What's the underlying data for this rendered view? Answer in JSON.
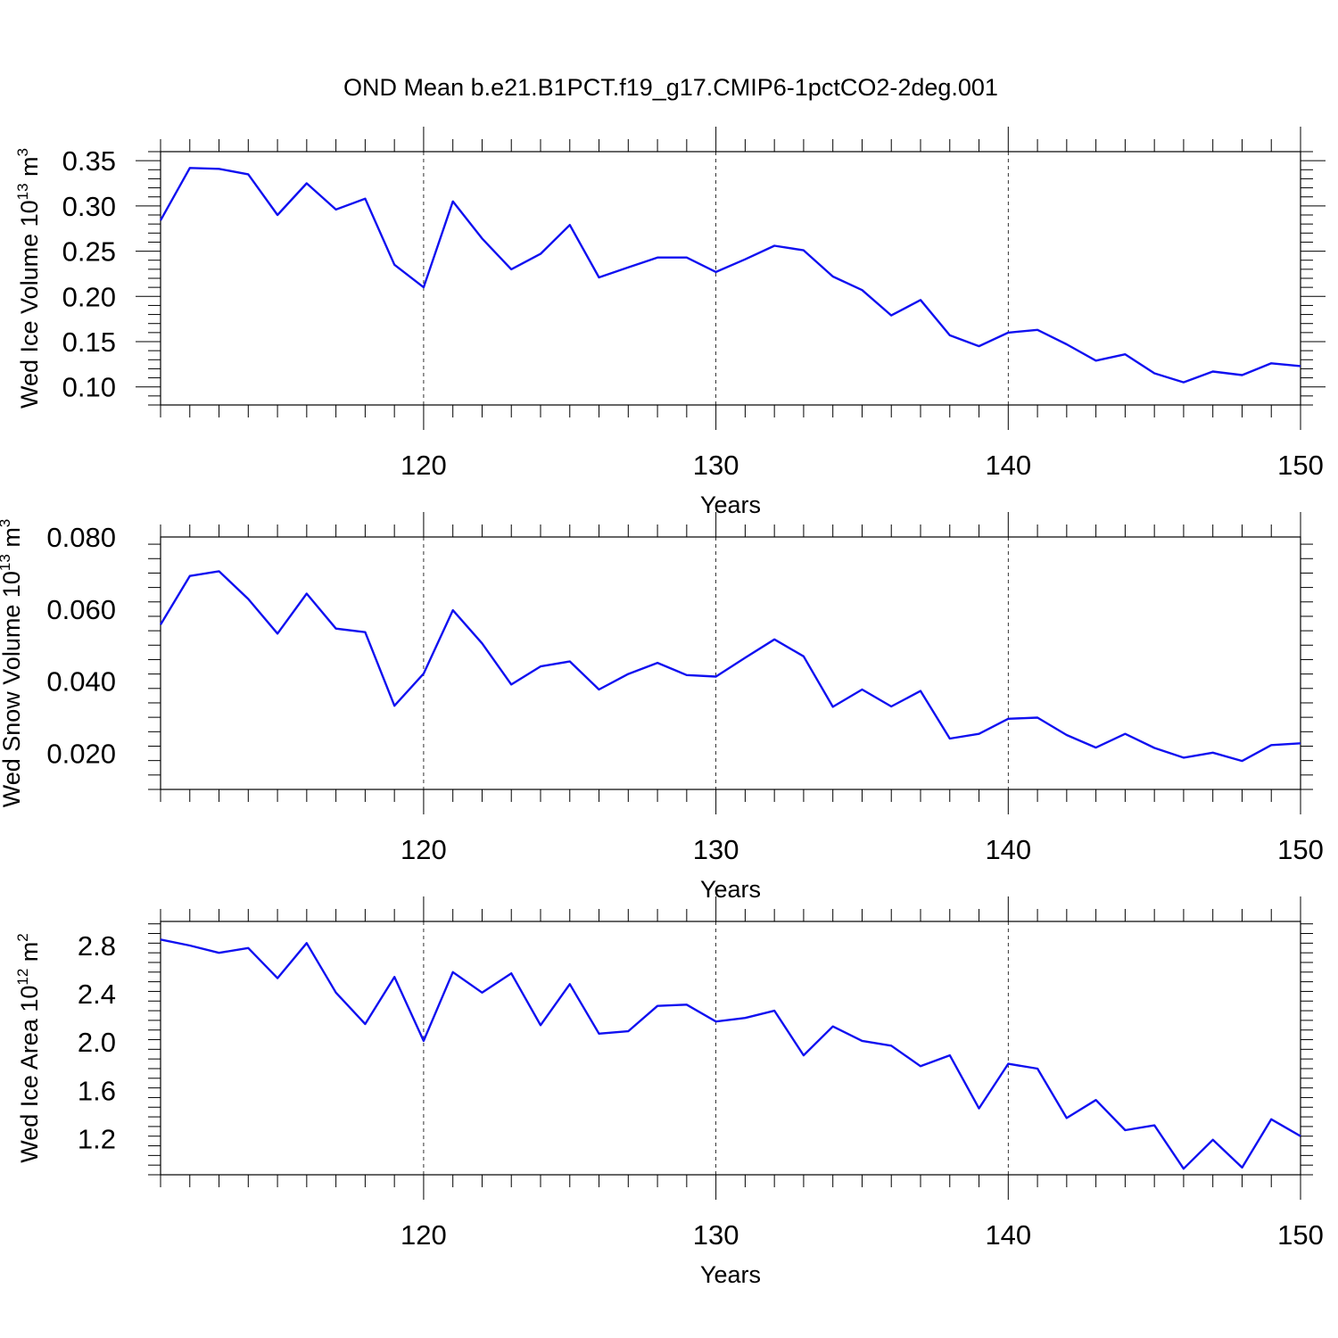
{
  "title": "OND Mean b.e21.B1PCT.f19_g17.CMIP6-1pctCO2-2deg.001",
  "chart_data": [
    {
      "type": "line",
      "ylabel": "Wed Ice Volume 10",
      "ylabel_exp": "13",
      "ylabel_unit": " m",
      "ylabel_unit_exp": "3",
      "xlabel": "Years",
      "xlim": [
        111,
        150
      ],
      "ylim": [
        0.08,
        0.36
      ],
      "yticks": [
        0.1,
        0.15,
        0.2,
        0.25,
        0.3,
        0.35
      ],
      "ytick_labels": [
        "0.10",
        "0.15",
        "0.20",
        "0.25",
        "0.30",
        "0.35"
      ],
      "xticks": [
        120,
        130,
        140,
        150
      ],
      "xtick_labels": [
        "120",
        "130",
        "140",
        "150"
      ],
      "grid": "dashed vertical at major x ticks",
      "color": "#1010f0",
      "x": [
        111,
        112,
        113,
        114,
        115,
        116,
        117,
        118,
        119,
        120,
        121,
        122,
        123,
        124,
        125,
        126,
        127,
        128,
        129,
        130,
        131,
        132,
        133,
        134,
        135,
        136,
        137,
        138,
        139,
        140,
        141,
        142,
        143,
        144,
        145,
        146,
        147,
        148,
        149,
        150
      ],
      "values": [
        0.284,
        0.342,
        0.341,
        0.335,
        0.29,
        0.325,
        0.296,
        0.308,
        0.235,
        0.21,
        0.305,
        0.264,
        0.23,
        0.247,
        0.279,
        0.221,
        0.232,
        0.243,
        0.243,
        0.227,
        0.241,
        0.256,
        0.251,
        0.222,
        0.207,
        0.179,
        0.196,
        0.157,
        0.145,
        0.16,
        0.163,
        0.147,
        0.129,
        0.136,
        0.115,
        0.105,
        0.117,
        0.113,
        0.126,
        0.123
      ]
    },
    {
      "type": "line",
      "ylabel": "Wed Snow Volume 10",
      "ylabel_exp": "13",
      "ylabel_unit": " m",
      "ylabel_unit_exp": "3",
      "xlabel": "Years",
      "xlim": [
        111,
        150
      ],
      "ylim": [
        0.01,
        0.08
      ],
      "yticks": [
        0.02,
        0.04,
        0.06,
        0.08
      ],
      "ytick_labels": [
        "0.020",
        "0.040",
        "0.060",
        "0.080"
      ],
      "xticks": [
        120,
        130,
        140,
        150
      ],
      "xtick_labels": [
        "120",
        "130",
        "140",
        "150"
      ],
      "grid": "dashed vertical at major x ticks",
      "color": "#1010f0",
      "x": [
        111,
        112,
        113,
        114,
        115,
        116,
        117,
        118,
        119,
        120,
        121,
        122,
        123,
        124,
        125,
        126,
        127,
        128,
        129,
        130,
        131,
        132,
        133,
        134,
        135,
        136,
        137,
        138,
        139,
        140,
        141,
        142,
        143,
        144,
        145,
        146,
        147,
        148,
        149,
        150
      ],
      "values": [
        0.0557,
        0.0692,
        0.0705,
        0.0628,
        0.0532,
        0.0643,
        0.0546,
        0.0536,
        0.0332,
        0.0421,
        0.0597,
        0.0505,
        0.0391,
        0.0441,
        0.0455,
        0.0377,
        0.042,
        0.0451,
        0.0417,
        0.0413,
        0.0465,
        0.0516,
        0.0469,
        0.0329,
        0.0377,
        0.033,
        0.0373,
        0.0241,
        0.0254,
        0.0296,
        0.0299,
        0.0251,
        0.0216,
        0.0254,
        0.0215,
        0.0188,
        0.0202,
        0.0179,
        0.0223,
        0.0228
      ]
    },
    {
      "type": "line",
      "ylabel": "Wed Ice Area 10",
      "ylabel_exp": "12",
      "ylabel_unit": " m",
      "ylabel_unit_exp": "2",
      "xlabel": "Years",
      "xlim": [
        111,
        150
      ],
      "ylim": [
        0.9,
        3.0
      ],
      "yticks": [
        1.2,
        1.6,
        2.0,
        2.4,
        2.8
      ],
      "ytick_labels": [
        "1.2",
        "1.6",
        "2.0",
        "2.4",
        "2.8"
      ],
      "xticks": [
        120,
        130,
        140,
        150
      ],
      "xtick_labels": [
        "120",
        "130",
        "140",
        "150"
      ],
      "grid": "dashed vertical at major x ticks",
      "color": "#1010f0",
      "x": [
        111,
        112,
        113,
        114,
        115,
        116,
        117,
        118,
        119,
        120,
        121,
        122,
        123,
        124,
        125,
        126,
        127,
        128,
        129,
        130,
        131,
        132,
        133,
        134,
        135,
        136,
        137,
        138,
        139,
        140,
        141,
        142,
        143,
        144,
        145,
        146,
        147,
        148,
        149,
        150
      ],
      "values": [
        2.85,
        2.8,
        2.74,
        2.78,
        2.53,
        2.82,
        2.41,
        2.15,
        2.54,
        2.01,
        2.58,
        2.41,
        2.57,
        2.14,
        2.48,
        2.07,
        2.09,
        2.3,
        2.31,
        2.17,
        2.2,
        2.26,
        1.89,
        2.13,
        2.01,
        1.97,
        1.8,
        1.89,
        1.45,
        1.82,
        1.78,
        1.37,
        1.52,
        1.27,
        1.31,
        0.95,
        1.19,
        0.96,
        1.36,
        1.22
      ]
    }
  ]
}
